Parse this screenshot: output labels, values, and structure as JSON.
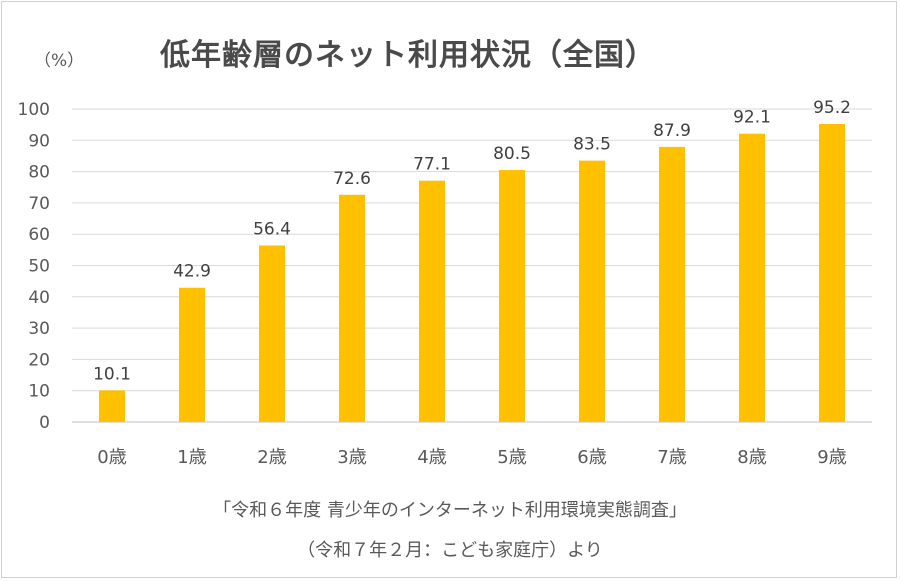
{
  "chart_data": {
    "type": "bar",
    "title": "低年齢層のネット利用状況（全国）",
    "ylabel": "（%）",
    "xlabel": "",
    "categories": [
      "0歳",
      "1歳",
      "2歳",
      "3歳",
      "4歳",
      "5歳",
      "6歳",
      "7歳",
      "8歳",
      "9歳"
    ],
    "values": [
      10.1,
      42.9,
      56.4,
      72.6,
      77.1,
      80.5,
      83.5,
      87.9,
      92.1,
      95.2
    ],
    "ylim": [
      0,
      100
    ],
    "yticks": [
      0,
      10,
      20,
      30,
      40,
      50,
      60,
      70,
      80,
      90,
      100
    ],
    "grid": true,
    "bar_color": "#FFC000",
    "source_line1": "「令和６年度 青少年のインターネット利用環境実態調査」",
    "source_line2": "（令和７年２月：こども家庭庁）より"
  }
}
